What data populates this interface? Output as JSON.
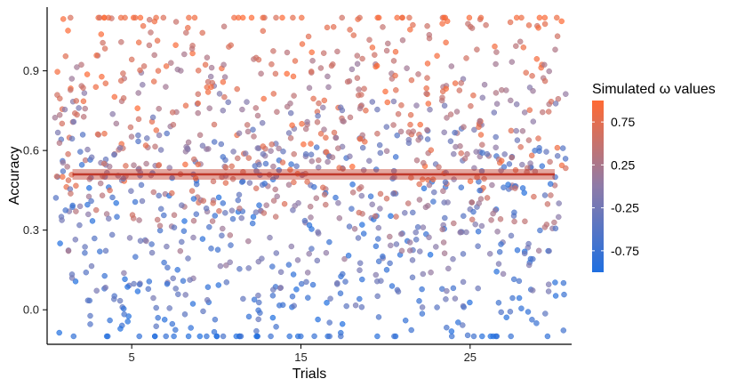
{
  "chart_data": {
    "type": "scatter",
    "xlabel": "Trials",
    "ylabel": "Accuracy",
    "xlim": [
      0,
      31
    ],
    "ylim": [
      -0.13,
      1.14
    ],
    "x_ticks": [
      5,
      15,
      25
    ],
    "x_tick_labels": [
      "5",
      "15",
      "25"
    ],
    "y_ticks": [
      0.0,
      0.3,
      0.6,
      0.9
    ],
    "y_tick_labels": [
      "0.0",
      "0.3",
      "0.6",
      "0.9"
    ],
    "grid": false,
    "trend_line": {
      "x_start": 1.5,
      "x_end": 30,
      "y": 0.51,
      "ci_low": 0.49,
      "ci_high": 0.53,
      "color": "#c0392b"
    },
    "color_scale": {
      "title": "Simulated ω values",
      "low_color": "#1f6fe0",
      "mid_color": "#8e7ba8",
      "high_color": "#ff6a33",
      "range": [
        -1,
        1
      ],
      "tick_values": [
        0.75,
        0.25,
        -0.25,
        -0.75
      ],
      "tick_labels": [
        "0.75",
        "0.25",
        "-0.25",
        "-0.75"
      ]
    },
    "legend_position": "right",
    "points_per_trial": 40,
    "trials": [
      1,
      30
    ],
    "point_opacity": 0.7
  }
}
